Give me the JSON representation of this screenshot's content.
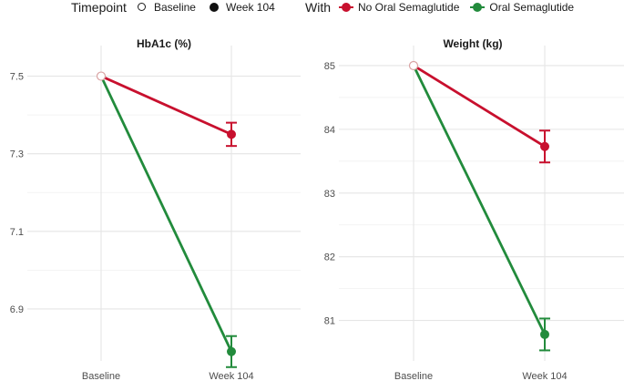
{
  "legend": {
    "timepoint": {
      "title": "Timepoint",
      "items": [
        {
          "label": "Baseline",
          "marker": "open-circle"
        },
        {
          "label": "Week 104",
          "marker": "filled-circle"
        }
      ]
    },
    "with": {
      "title": "With",
      "items": [
        {
          "label": "No Oral Semaglutide",
          "color": "#c8102e"
        },
        {
          "label": "Oral Semaglutide",
          "color": "#228b3c"
        }
      ]
    }
  },
  "colors": {
    "no_oral": "#c8102e",
    "oral": "#228b3c",
    "grid": "#e5e5e5",
    "baseline_point": "#d9a3a3"
  },
  "chart_data": [
    {
      "type": "line",
      "title": "HbA1c (%)",
      "categories": [
        "Baseline",
        "Week 104"
      ],
      "ylim": [
        6.78,
        7.56
      ],
      "yticks": [
        6.9,
        7.1,
        7.3,
        7.5
      ],
      "ytick_labels": [
        "6.9",
        "7.1",
        "7.3",
        "7.5"
      ],
      "grid": true,
      "series": [
        {
          "name": "No Oral Semaglutide",
          "values": [
            7.5,
            7.35
          ],
          "error": [
            0,
            0.03
          ],
          "color": "#c8102e"
        },
        {
          "name": "Oral Semaglutide",
          "values": [
            7.5,
            6.79
          ],
          "error": [
            0,
            0.04
          ],
          "color": "#228b3c"
        }
      ]
    },
    {
      "type": "line",
      "title": "Weight (kg)",
      "categories": [
        "Baseline",
        "Week 104"
      ],
      "ylim": [
        80.45,
        85.2
      ],
      "yticks": [
        81,
        82,
        83,
        84,
        85
      ],
      "ytick_labels": [
        "81",
        "82",
        "83",
        "84",
        "85"
      ],
      "grid": true,
      "series": [
        {
          "name": "No Oral Semaglutide",
          "values": [
            85.0,
            83.73
          ],
          "error": [
            0,
            0.25
          ],
          "color": "#c8102e"
        },
        {
          "name": "Oral Semaglutide",
          "values": [
            85.0,
            80.78
          ],
          "error": [
            0,
            0.25
          ],
          "color": "#228b3c"
        }
      ]
    }
  ]
}
